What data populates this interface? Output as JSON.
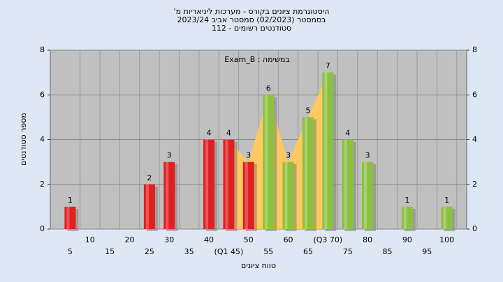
{
  "chart_data": {
    "type": "bar",
    "title": [
      "היסטוגרמת ציונים בקורס - מערכות ליניאריות מ'",
      "בסמסטר  (02/2023)  סמסטר אביב 2023/24",
      "סטודנטים רשומים - 112"
    ],
    "annotation": "Exam_B : במשימה",
    "xlabel": "טווח ציונים",
    "ylabel": "מספר סטודנטים",
    "x": [
      5,
      10,
      15,
      20,
      25,
      30,
      35,
      40,
      45,
      50,
      55,
      60,
      65,
      70,
      75,
      80,
      85,
      90,
      95,
      100
    ],
    "values": [
      1,
      0,
      0,
      0,
      2,
      3,
      0,
      4,
      4,
      3,
      6,
      3,
      5,
      7,
      4,
      3,
      0,
      1,
      0,
      1
    ],
    "colors": [
      "#e02020",
      "#e02020",
      "#e02020",
      "#e02020",
      "#e02020",
      "#e02020",
      "#e02020",
      "#e02020",
      "#e02020",
      "#e02020",
      "#8cc040",
      "#8cc040",
      "#8cc040",
      "#8cc040",
      "#8cc040",
      "#8cc040",
      "#8cc040",
      "#8cc040",
      "#8cc040",
      "#8cc040"
    ],
    "xlim": [
      0,
      105
    ],
    "ylim": [
      0,
      8
    ],
    "xticks": [
      5,
      10,
      15,
      20,
      25,
      30,
      35,
      40,
      {
        "value": 45,
        "label": "(Q1 45)"
      },
      50,
      55,
      60,
      65,
      {
        "value": 70,
        "label": "(Q3 70)"
      },
      75,
      80,
      85,
      90,
      95,
      100
    ],
    "yticks": [
      0,
      2,
      4,
      6,
      8
    ],
    "iqr_color": "#ffc860",
    "grid": true
  }
}
